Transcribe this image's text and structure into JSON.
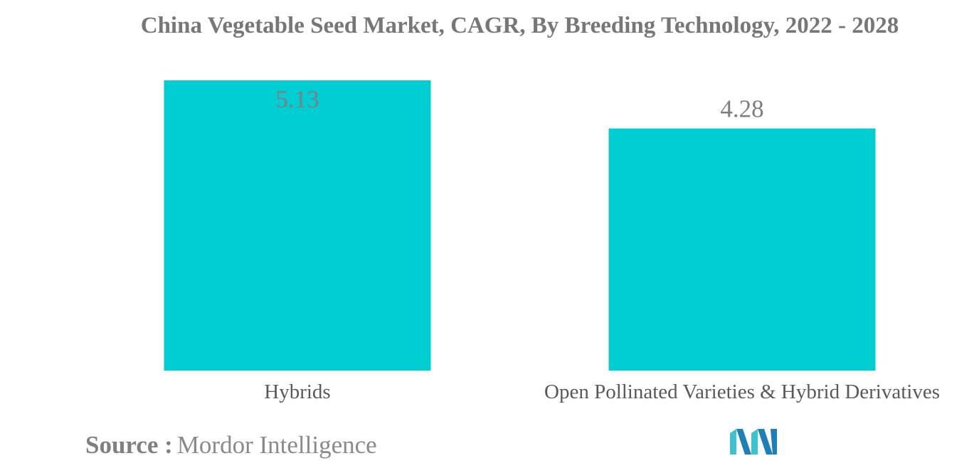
{
  "title": "China Vegetable Seed Market, CAGR, By Breeding Technology, 2022 - 2028",
  "source": {
    "label": "Source :",
    "name": "Mordor Intelligence"
  },
  "logo": {
    "icon": "mordor-intelligence-logo",
    "colors": [
      "#1f7fb8",
      "#3cc3cf"
    ]
  },
  "chart_data": {
    "type": "bar",
    "categories": [
      "Hybrids",
      "Open Pollinated Varieties & Hybrid Derivatives"
    ],
    "values": [
      5.13,
      4.28
    ],
    "data_labels": [
      "5.13",
      "4.28"
    ],
    "title": "China Vegetable Seed Market, CAGR, By Breeding Technology, 2022 - 2028",
    "xlabel": "",
    "ylabel": "",
    "ylim": [
      0,
      5.13
    ],
    "grid": false,
    "legend": "none",
    "bar_color": "#00cdd2"
  }
}
